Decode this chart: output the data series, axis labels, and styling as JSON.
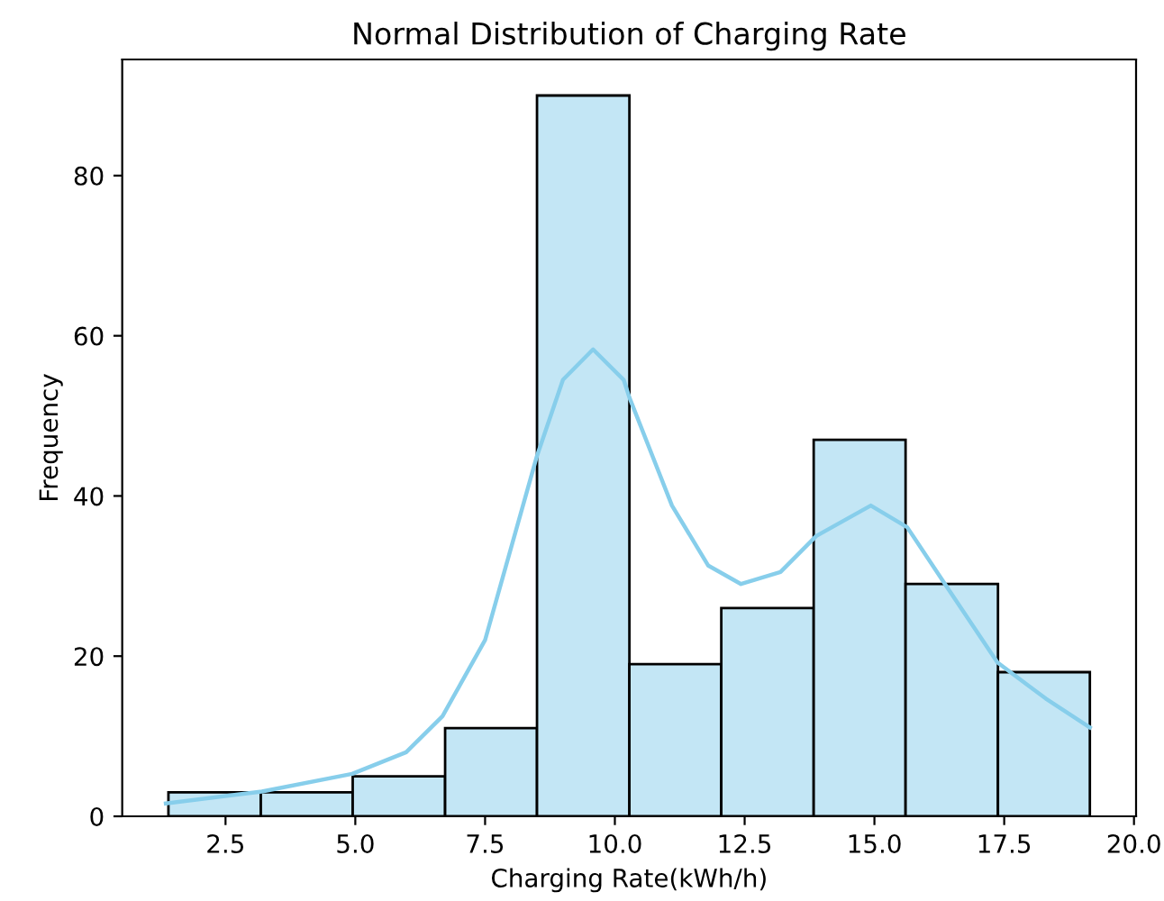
{
  "chart_data": {
    "type": "histogram",
    "title": "Normal Distribution of Charging Rate",
    "xlabel": "Charging Rate(kWh/h)",
    "ylabel": "Frequency",
    "xlim": [
      0.51,
      20.04
    ],
    "xticks": [
      {
        "value": 2.5,
        "label": "2.5"
      },
      {
        "value": 5.0,
        "label": "5.0"
      },
      {
        "value": 7.5,
        "label": "7.5"
      },
      {
        "value": 10.0,
        "label": "10.0"
      },
      {
        "value": 12.5,
        "label": "12.5"
      },
      {
        "value": 15.0,
        "label": "15.0"
      },
      {
        "value": 17.5,
        "label": "17.5"
      },
      {
        "value": 20.0,
        "label": "20.0"
      }
    ],
    "ylim": [
      0,
      94.5
    ],
    "yticks": [
      0,
      20,
      40,
      60,
      80
    ],
    "grid": false,
    "legend": false,
    "series": [
      {
        "color": "#c3e6f5",
        "bins": [
          1.4,
          3.18,
          4.95,
          6.73,
          8.5,
          10.28,
          12.05,
          13.83,
          15.6,
          17.38,
          19.15
        ],
        "values": [
          3,
          3,
          5,
          11,
          90,
          19,
          26,
          47,
          29,
          18
        ]
      },
      {
        "type": "line",
        "color": "#87ceeb",
        "x": [
          1.35,
          3.2,
          4.94,
          5.98,
          6.68,
          7.5,
          8.49,
          9.0,
          9.58,
          10.17,
          10.28,
          11.1,
          11.8,
          12.43,
          13.19,
          13.88,
          14.93,
          15.63,
          16.44,
          17.37,
          18.3,
          19.15
        ],
        "values": [
          1.6,
          3.1,
          5.3,
          8.0,
          12.5,
          22,
          44.8,
          54.5,
          58.3,
          54.5,
          52.3,
          38.8,
          31.3,
          29.0,
          30.5,
          35.0,
          38.8,
          36.1,
          28.2,
          19.2,
          14.7,
          11.1
        ]
      }
    ]
  }
}
